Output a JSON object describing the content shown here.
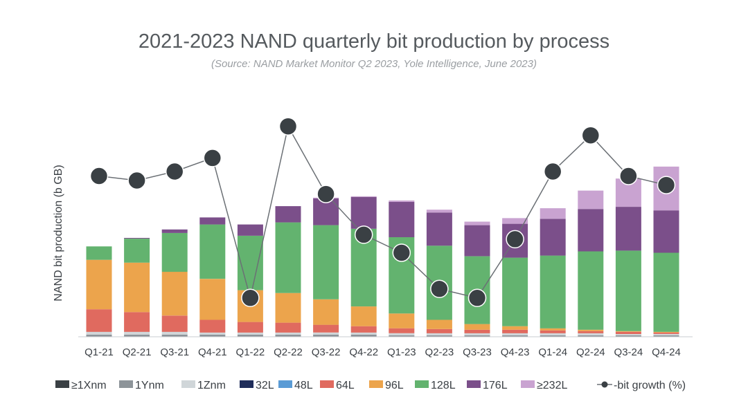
{
  "chart_data": {
    "type": "bar",
    "title": "2021-2023 NAND quarterly bit production by process",
    "subtitle": "(Source: NAND Market Monitor Q2 2023, Yole Intelligence, June 2023)",
    "ylabel": "NAND bit production (b GB)",
    "xlabel": "",
    "categories": [
      "Q1-21",
      "Q2-21",
      "Q3-21",
      "Q4-21",
      "Q1-22",
      "Q2-22",
      "Q3-22",
      "Q4-22",
      "Q1-23",
      "Q2-23",
      "Q3-23",
      "Q4-23",
      "Q1-24",
      "Q2-24",
      "Q3-24",
      "Q4-24"
    ],
    "stacked": true,
    "ylim": [
      0,
      330
    ],
    "series": [
      {
        "name": "≥1Xnm",
        "color": "#3a4044",
        "values": [
          0,
          0,
          0,
          0,
          0,
          0,
          0,
          0,
          0,
          0,
          0,
          0,
          0,
          0,
          0,
          0
        ]
      },
      {
        "name": "1Ynm",
        "color": "#8d9499",
        "values": [
          3,
          3,
          3,
          3,
          3,
          3,
          3,
          3,
          2,
          2,
          2,
          2,
          2,
          2,
          2,
          2
        ]
      },
      {
        "name": "1Znm",
        "color": "#d0d6d9",
        "values": [
          4,
          4,
          4,
          3,
          3,
          3,
          3,
          3,
          3,
          3,
          3,
          3,
          3,
          3,
          2,
          2
        ]
      },
      {
        "name": "32L",
        "color": "#1f2d5a",
        "values": [
          0,
          0,
          0,
          0,
          0,
          0,
          0,
          0,
          0,
          0,
          0,
          0,
          0,
          0,
          0,
          0
        ]
      },
      {
        "name": "48L",
        "color": "#5a9bd5",
        "values": [
          0,
          0,
          0,
          0,
          0,
          0,
          0,
          0,
          0,
          0,
          0,
          0,
          0,
          0,
          0,
          0
        ]
      },
      {
        "name": "64L",
        "color": "#e06a5f",
        "values": [
          32,
          28,
          23,
          18,
          15,
          14,
          11,
          9,
          7,
          6,
          5,
          5,
          4,
          3,
          3,
          2
        ]
      },
      {
        "name": "96L",
        "color": "#eca44c",
        "values": [
          70,
          70,
          62,
          58,
          45,
          42,
          36,
          28,
          21,
          13,
          8,
          5,
          3,
          2,
          1,
          1
        ]
      },
      {
        "name": "128L",
        "color": "#63b36f",
        "values": [
          19,
          34,
          55,
          77,
          77,
          100,
          105,
          110,
          108,
          105,
          96,
          97,
          103,
          111,
          114,
          112
        ]
      },
      {
        "name": "176L",
        "color": "#7b4f8a",
        "values": [
          0,
          1,
          5,
          10,
          16,
          23,
          38,
          45,
          50,
          47,
          44,
          48,
          52,
          60,
          62,
          60
        ]
      },
      {
        "name": "≥232L",
        "color": "#c9a3d1",
        "values": [
          0,
          0,
          0,
          0,
          0,
          0,
          1,
          1,
          2,
          4,
          5,
          8,
          15,
          26,
          40,
          62
        ]
      }
    ],
    "line": {
      "name": "bit growth (%)",
      "legend_label": "bit growth (%)",
      "color": "#3a4044",
      "values": [
        11,
        10,
        12,
        15,
        -16,
        22,
        7,
        -2,
        -6,
        -14,
        -16,
        -3,
        12,
        20,
        11,
        9
      ],
      "range": [
        -22,
        27
      ]
    },
    "legend_position": "bottom",
    "grid": false
  }
}
